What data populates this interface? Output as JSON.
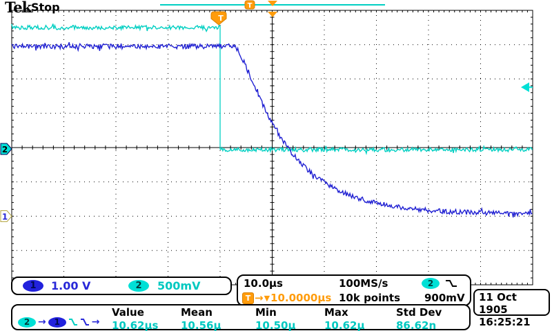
{
  "header": {
    "logo": "Tek",
    "acquisition_status": "Stop"
  },
  "channel_readout": {
    "ch1": {
      "badge": "1",
      "scale": "1.00 V"
    },
    "ch2": {
      "badge": "2",
      "scale": "500mV"
    }
  },
  "horizontal_readout": {
    "timebase": "10.0µs",
    "sample_rate": "100MS/s",
    "record_length": "10k points",
    "trigger_badge": "T",
    "arrow": "→",
    "pos_marker": "▼",
    "trigger_delay": "10.0000µs",
    "trigger_source_badge": "2",
    "trigger_level": "900mV"
  },
  "datetime": {
    "date": "11 Oct 1905",
    "time": "16:25:21"
  },
  "measurements": {
    "source": {
      "from_badge": "2",
      "to_badge": "1",
      "arrow1": "→",
      "arrow2": "→"
    },
    "columns": [
      {
        "label": "Value",
        "value": "10.62µs"
      },
      {
        "label": "Mean",
        "value": "10.56µ"
      },
      {
        "label": "Min",
        "value": "10.50µ"
      },
      {
        "label": "Max",
        "value": "10.62µ"
      },
      {
        "label": "Std Dev",
        "value": "86.62n"
      }
    ]
  },
  "colors": {
    "ch1_trace": "#1f1fd2",
    "ch2_trace": "#00cfc2",
    "trigger_orange": "#ff9c0c",
    "text_blue": "#2828d8",
    "text_cyan": "#00c8c0",
    "background": "#ffffff",
    "graticule": "#000000"
  },
  "chart_data": {
    "type": "line",
    "title": "CH1 exponential decay triggered by CH2 falling step",
    "x_axis": {
      "units": "µs",
      "per_division": 10,
      "divisions": 10,
      "trigger_position_division": 4.0,
      "delay_trigger_to_center_us": 10.0
    },
    "y_axis": {
      "divisions": 8,
      "grid": "dotted"
    },
    "series": [
      {
        "name": "CH2",
        "color": "#00cfc2",
        "volts_per_div": 0.5,
        "ground_div_from_center": 0,
        "shape": "step",
        "high_V": 1.75,
        "low_V": -0.03,
        "step_at_us": 0.0,
        "noise_Vpp": 0.06
      },
      {
        "name": "CH1",
        "color": "#1f1fd2",
        "volts_per_div": 1.0,
        "ground_div_from_center": -2,
        "shape": "exp_decay",
        "high_V": 4.95,
        "final_V": 0.06,
        "decay_start_us": 2.4,
        "tau_us": 9.5,
        "smooth_us": 1.8,
        "noise_Vpp": 0.14
      }
    ],
    "trigger": {
      "source": "CH2",
      "level_V": 0.9,
      "slope": "falling",
      "level_readout": "900mV"
    },
    "measurement": {
      "type": "delay, falling CH2 to falling CH1",
      "value_us": 10.62
    }
  }
}
